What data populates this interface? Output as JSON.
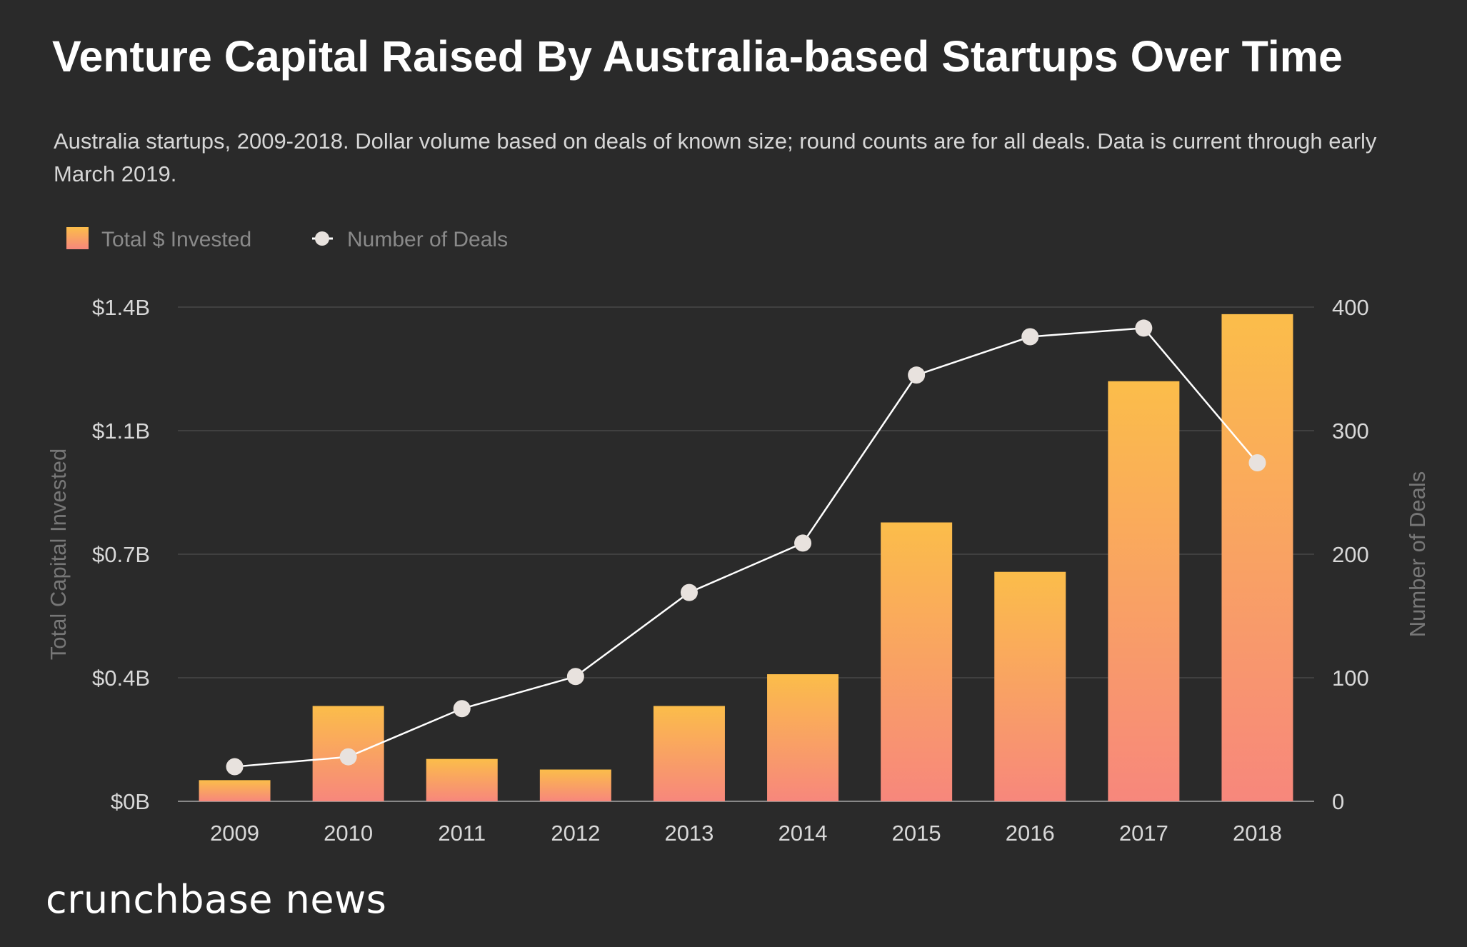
{
  "chart_data": {
    "type": "bar+line",
    "title": "Venture Capital Raised By Australia-based Startups Over Time",
    "subtitle": "Australia startups, 2009-2018. Dollar volume based on deals of known size; round counts are for all deals. Data is current through early March 2019.",
    "categories": [
      "2009",
      "2010",
      "2011",
      "2012",
      "2013",
      "2014",
      "2015",
      "2016",
      "2017",
      "2018"
    ],
    "series": [
      {
        "name": "Total $ Invested",
        "type": "bar",
        "axis": "left",
        "unit": "$B",
        "values": [
          0.06,
          0.27,
          0.12,
          0.09,
          0.27,
          0.36,
          0.79,
          0.65,
          1.19,
          1.38
        ]
      },
      {
        "name": "Number of Deals",
        "type": "line",
        "axis": "right",
        "values": [
          28,
          36,
          75,
          101,
          169,
          209,
          345,
          376,
          383,
          274
        ]
      }
    ],
    "ylabel": "Total Capital Invested",
    "y2label": "Number of Deals",
    "ylim": [
      0,
      1.4
    ],
    "y2lim": [
      0,
      400
    ],
    "yticks": [
      "$0B",
      "$0.4B",
      "$0.7B",
      "$1.1B",
      "$1.4B"
    ],
    "y2ticks": [
      "0",
      "100",
      "200",
      "300",
      "400"
    ],
    "grid": true,
    "legend": "top-left",
    "colors": {
      "bar_top": "#fbbd4a",
      "bar_bottom": "#f7877c",
      "line": "#ffffff",
      "marker": "#e8e2de",
      "background": "#2a2a2a"
    }
  },
  "brand": "crunchbase news"
}
